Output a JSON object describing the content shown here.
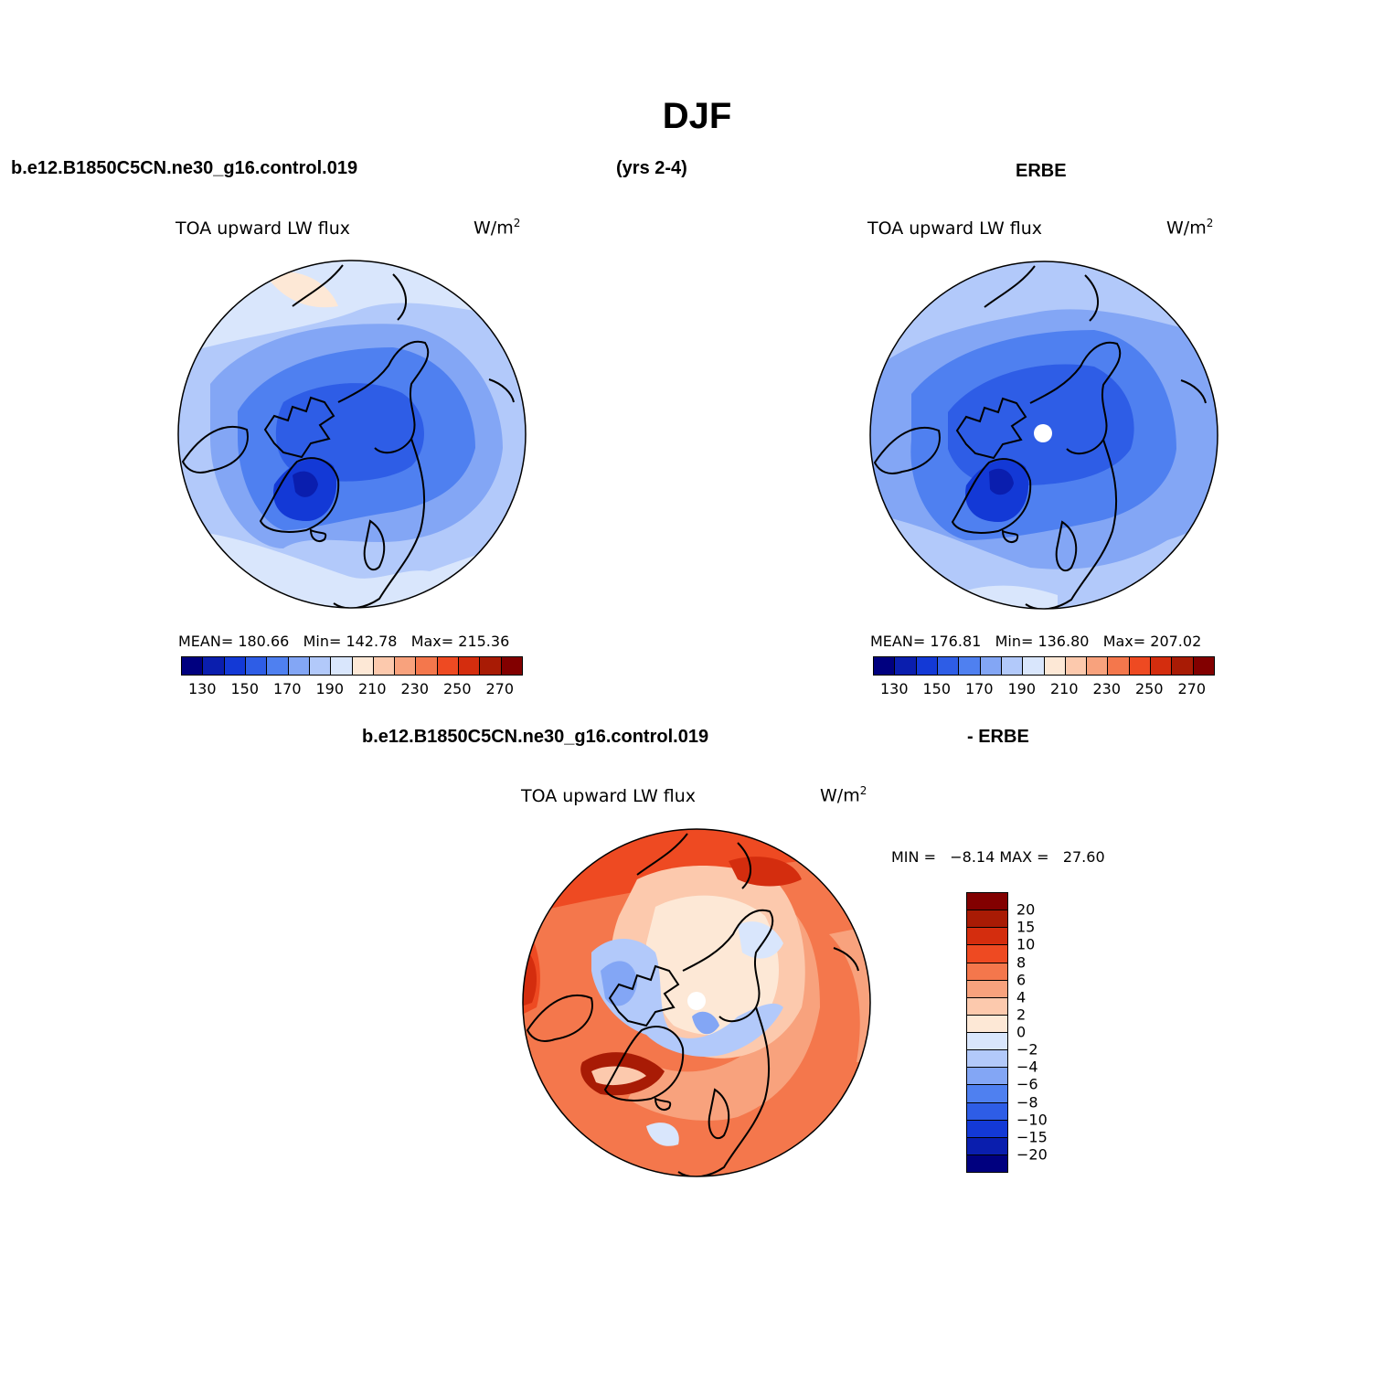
{
  "title": "DJF",
  "top_left": {
    "case_name": "b.e12.B1850C5CN.ne30_g16.control.019",
    "years": "(yrs 2-4)",
    "plot_title": "TOA upward LW flux",
    "units_base": "W/m",
    "units_exp": "2",
    "stats": "MEAN= 180.66   Min= 142.78   Max= 215.36"
  },
  "top_right": {
    "dataset": "ERBE",
    "plot_title": "TOA upward LW flux",
    "units_base": "W/m",
    "units_exp": "2",
    "stats": "MEAN= 176.81   Min= 136.80   Max= 207.02"
  },
  "bottom": {
    "case_name": "b.e12.B1850C5CN.ne30_g16.control.019",
    "minus_label": "- ERBE",
    "plot_title": "TOA upward LW flux",
    "units_base": "W/m",
    "units_exp": "2",
    "stats": "MIN =   −8.14 MAX =   27.60"
  },
  "abs_colorbar": {
    "colors": [
      "#00007f",
      "#0a1eae",
      "#1339d6",
      "#2e5de6",
      "#4f80f0",
      "#83a6f5",
      "#b2c9fa",
      "#d9e6fc",
      "#fde8d6",
      "#fcc9ad",
      "#f8a27d",
      "#f4774c",
      "#ee4a22",
      "#d42d0e",
      "#a81b05",
      "#820000"
    ],
    "labels": [
      "130",
      "150",
      "170",
      "190",
      "210",
      "230",
      "250",
      "270"
    ]
  },
  "diff_colorbar": {
    "colors": [
      "#820000",
      "#a81b05",
      "#d42d0e",
      "#ee4a22",
      "#f4774c",
      "#f8a27d",
      "#fcc9ad",
      "#fde8d6",
      "#d9e6fc",
      "#b2c9fa",
      "#83a6f5",
      "#4f80f0",
      "#2e5de6",
      "#1339d6",
      "#0a1eae",
      "#00007f"
    ],
    "labels": [
      "20",
      "15",
      "10",
      "8",
      "6",
      "4",
      "2",
      "0",
      "−2",
      "−4",
      "−6",
      "−8",
      "−10",
      "−15",
      "−20"
    ]
  }
}
